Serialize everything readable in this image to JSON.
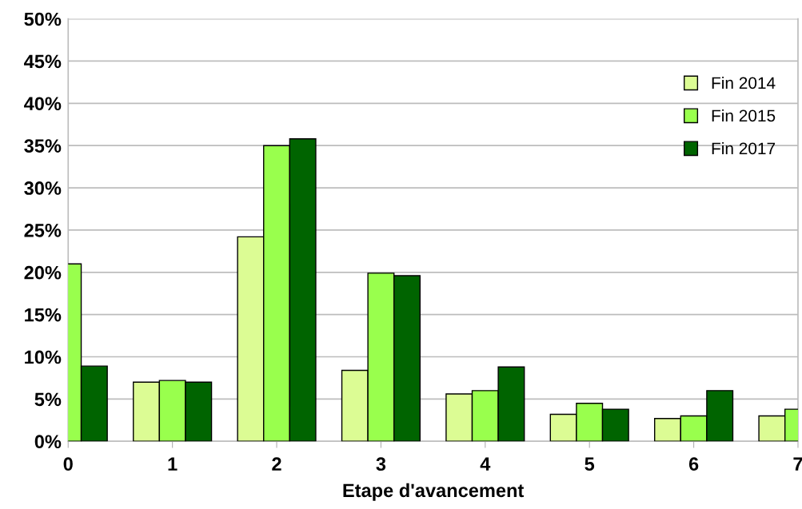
{
  "chart_data": {
    "type": "bar",
    "xlabel": "Etape d'avancement",
    "x": [
      0,
      1,
      2,
      3,
      4,
      5,
      6,
      7
    ],
    "series": [
      {
        "name": "Fin 2014",
        "color": "#dcfc94",
        "values": [
          null,
          7.0,
          24.2,
          8.4,
          5.6,
          3.2,
          2.7,
          3.0
        ]
      },
      {
        "name": "Fin 2015",
        "color": "#99ff4d",
        "values": [
          21.0,
          7.2,
          35.0,
          19.9,
          6.0,
          4.5,
          3.0,
          3.8
        ]
      },
      {
        "name": "Fin 2017",
        "color": "#006400",
        "values": [
          8.9,
          7.0,
          35.8,
          19.6,
          8.8,
          3.8,
          6.0,
          null
        ]
      }
    ],
    "xlim": [
      0,
      7
    ],
    "xticks": [
      0,
      1,
      2,
      3,
      4,
      5,
      6,
      7
    ],
    "ylim": [
      0,
      50
    ],
    "yticks": [
      {
        "value": 0,
        "label": "0%"
      },
      {
        "value": 5,
        "label": "5%"
      },
      {
        "value": 10,
        "label": "10%"
      },
      {
        "value": 15,
        "label": "15%"
      },
      {
        "value": 20,
        "label": "20%"
      },
      {
        "value": 25,
        "label": "25%"
      },
      {
        "value": 30,
        "label": "30%"
      },
      {
        "value": 35,
        "label": "35%"
      },
      {
        "value": 40,
        "label": "40%"
      },
      {
        "value": 45,
        "label": "45%"
      },
      {
        "value": 50,
        "label": "50%"
      }
    ],
    "grid": "y",
    "legend": "top right"
  }
}
